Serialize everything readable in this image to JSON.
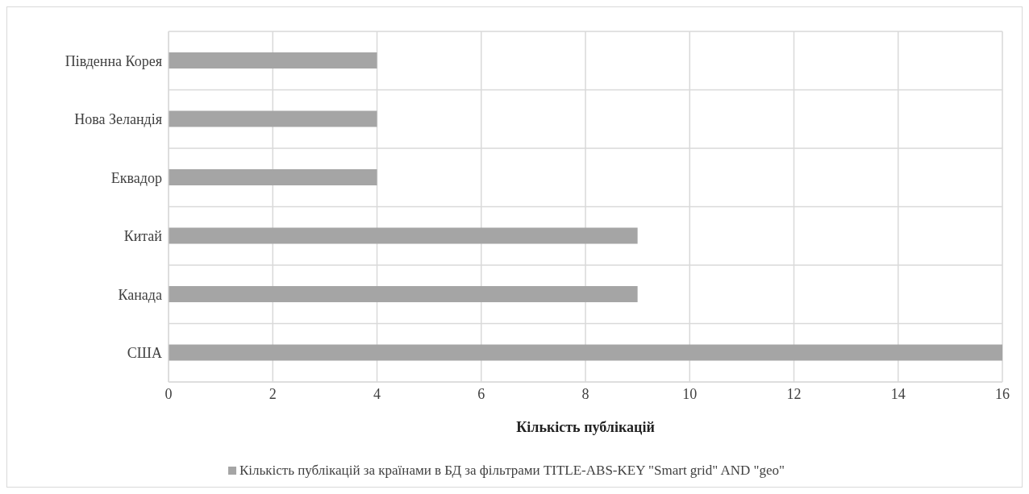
{
  "chart_data": {
    "type": "bar",
    "orientation": "horizontal",
    "categories": [
      "Південна Корея",
      "Нова Зеландія",
      "Еквадор",
      "Китай",
      "Канада",
      "США"
    ],
    "series": [
      {
        "name": "Кількість публікацій за країнами в БД за фільтрами TITLE-ABS-KEY \"Smart grid\"  AND  \"geo\"",
        "color": "#a5a5a5",
        "values": [
          4,
          4,
          4,
          9,
          9,
          16
        ]
      }
    ],
    "xlabel": "Кількість публікацій",
    "xlim": [
      0,
      16
    ],
    "xticks": [
      0,
      2,
      4,
      6,
      8,
      10,
      12,
      14,
      16
    ],
    "grid": true,
    "legend": "bottom"
  }
}
